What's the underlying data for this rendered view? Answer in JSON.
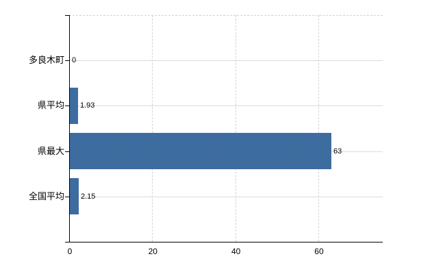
{
  "chart_data": {
    "type": "bar",
    "orientation": "horizontal",
    "title": "",
    "categories": [
      "多良木町",
      "県平均",
      "県最大",
      "全国平均"
    ],
    "values": [
      0,
      1.93,
      63,
      2.15
    ],
    "value_labels": [
      "0",
      "1.93",
      "63",
      "2.15"
    ],
    "x_ticks": [
      0,
      20,
      40,
      60
    ],
    "xlim": [
      0,
      75.5
    ],
    "grid": true,
    "legend": false,
    "colors": {
      "bar": "#3b6da4",
      "h_gridline": "#d7ddd5",
      "v_gridline": "#d5d1d6",
      "plot_top_border": "#d5d1d6",
      "axis": "#000000",
      "text": "#000000"
    }
  }
}
